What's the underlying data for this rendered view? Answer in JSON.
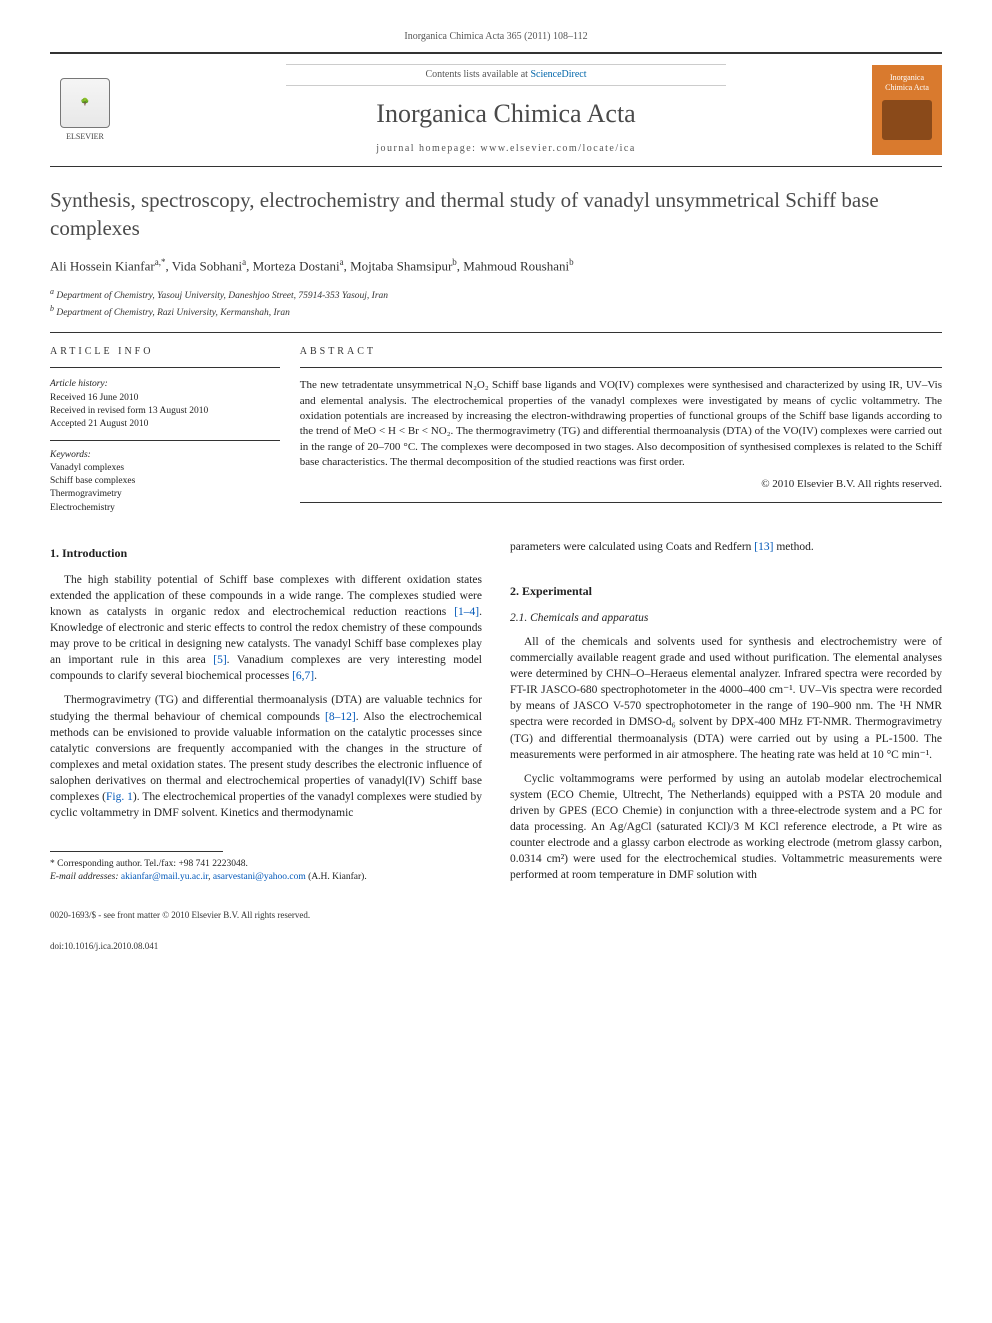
{
  "header": {
    "journal_ref": "Inorganica Chimica Acta 365 (2011) 108–112",
    "contents_prefix": "Contents lists available at ",
    "contents_link": "ScienceDirect",
    "journal_name": "Inorganica Chimica Acta",
    "homepage_prefix": "journal homepage: ",
    "homepage_url": "www.elsevier.com/locate/ica",
    "elsevier_label": "ELSEVIER",
    "cover_label_top": "Inorganica",
    "cover_label_bottom": "Chimica Acta"
  },
  "title": "Synthesis, spectroscopy, electrochemistry and thermal study of vanadyl unsymmetrical Schiff base complexes",
  "authors_html": "Ali Hossein Kianfar<sup>a,*</sup>, Vida Sobhani<sup>a</sup>, Morteza Dostani<sup>a</sup>, Mojtaba Shamsipur<sup>b</sup>, Mahmoud Roushani<sup>b</sup>",
  "affiliations": {
    "a": "Department of Chemistry, Yasouj University, Daneshjoo Street, 75914-353 Yasouj, Iran",
    "b": "Department of Chemistry, Razi University, Kermanshah, Iran"
  },
  "info": {
    "heading": "ARTICLE INFO",
    "history_label": "Article history:",
    "received": "Received 16 June 2010",
    "revised": "Received in revised form 13 August 2010",
    "accepted": "Accepted 21 August 2010",
    "keywords_label": "Keywords:",
    "keywords": [
      "Vanadyl complexes",
      "Schiff base complexes",
      "Thermogravimetry",
      "Electrochemistry"
    ]
  },
  "abstract": {
    "heading": "ABSTRACT",
    "text": "The new tetradentate unsymmetrical N₂O₂ Schiff base ligands and VO(IV) complexes were synthesised and characterized by using IR, UV–Vis and elemental analysis. The electrochemical properties of the vanadyl complexes were investigated by means of cyclic voltammetry. The oxidation potentials are increased by increasing the electron-withdrawing properties of functional groups of the Schiff base ligands according to the trend of MeO < H < Br < NO₂. The thermogravimetry (TG) and differential thermoanalysis (DTA) of the VO(IV) complexes were carried out in the range of 20–700 °C. The complexes were decomposed in two stages. Also decomposition of synthesised complexes is related to the Schiff base characteristics. The thermal decomposition of the studied reactions was first order.",
    "copyright": "© 2010 Elsevier B.V. All rights reserved."
  },
  "sections": {
    "intro_heading": "1. Introduction",
    "intro_p1_a": "The high stability potential of Schiff base complexes with different oxidation states extended the application of these compounds in a wide range. The complexes studied were known as catalysts in organic redox and electrochemical reduction reactions ",
    "intro_p1_cite1": "[1–4]",
    "intro_p1_b": ". Knowledge of electronic and steric effects to control the redox chemistry of these compounds may prove to be critical in designing new catalysts. The vanadyl Schiff base complexes play an important rule in this area ",
    "intro_p1_cite2": "[5]",
    "intro_p1_c": ". Vanadium complexes are very interesting model compounds to clarify several biochemical processes ",
    "intro_p1_cite3": "[6,7]",
    "intro_p1_d": ".",
    "intro_p2_a": "Thermogravimetry (TG) and differential thermoanalysis (DTA) are valuable technics for studying the thermal behaviour of chemical compounds ",
    "intro_p2_cite1": "[8–12]",
    "intro_p2_b": ". Also the electrochemical methods can be envisioned to provide valuable information on the catalytic processes since catalytic conversions are frequently accompanied with the changes in the structure of complexes and metal oxidation states. The present study describes the electronic influence of salophen derivatives on thermal and electrochemical properties of vanadyl(IV) Schiff base complexes (",
    "intro_p2_fig": "Fig. 1",
    "intro_p2_c": "). The electrochemical properties of the vanadyl complexes were studied by cyclic voltammetry in DMF solvent. Kinetics and thermodynamic",
    "intro_p3_a": "parameters were calculated using Coats and Redfern ",
    "intro_p3_cite1": "[13]",
    "intro_p3_b": " method.",
    "exp_heading": "2. Experimental",
    "exp_sub_heading": "2.1. Chemicals and apparatus",
    "exp_p1": "All of the chemicals and solvents used for synthesis and electrochemistry were of commercially available reagent grade and used without purification. The elemental analyses were determined by CHN–O–Heraeus elemental analyzer. Infrared spectra were recorded by FT-IR JASCO-680 spectrophotometer in the 4000–400 cm⁻¹. UV–Vis spectra were recorded by means of JASCO V-570 spectrophotometer in the range of 190–900 nm. The ¹H NMR spectra were recorded in DMSO-d₆ solvent by DPX-400 MHz FT-NMR. Thermogravimetry (TG) and differential thermoanalysis (DTA) were carried out by using a PL-1500. The measurements were performed in air atmosphere. The heating rate was held at 10 °C min⁻¹.",
    "exp_p2": "Cyclic voltammograms were performed by using an autolab modelar electrochemical system (ECO Chemie, Ultrecht, The Netherlands) equipped with a PSTA 20 module and driven by GPES (ECO Chemie) in conjunction with a three-electrode system and a PC for data processing. An Ag/AgCl (saturated KCl)/3 M KCl reference electrode, a Pt wire as counter electrode and a glassy carbon electrode as working electrode (metrom glassy carbon, 0.0314 cm²) were used for the electrochemical studies. Voltammetric measurements were performed at room temperature in DMF solution with"
  },
  "footnote": {
    "corresponding": "* Corresponding author. Tel./fax: +98 741 2223048.",
    "email_label": "E-mail addresses:",
    "email1": "akianfar@mail.yu.ac.ir",
    "email_sep": ", ",
    "email2": "asarvestani@yahoo.com",
    "email_suffix": " (A.H. Kianfar)."
  },
  "bottom": {
    "line1": "0020-1693/$ - see front matter © 2010 Elsevier B.V. All rights reserved.",
    "line2": "doi:10.1016/j.ica.2010.08.041"
  },
  "colors": {
    "link": "#0057b8",
    "cover_bg": "#d97a2e",
    "text": "#222222",
    "heading": "#4a4a4a"
  }
}
